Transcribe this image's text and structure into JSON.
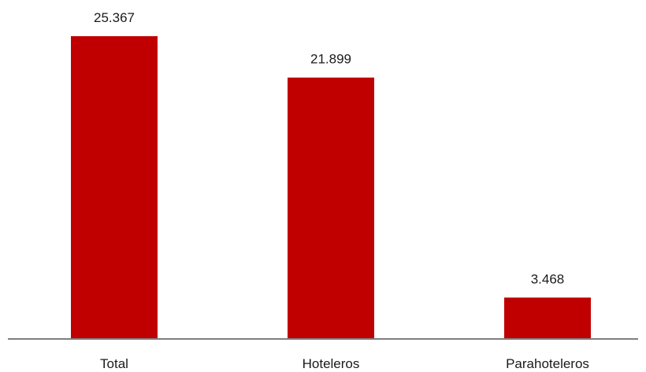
{
  "chart_data": {
    "type": "bar",
    "categories": [
      "Total",
      "Hoteleros",
      "Parahoteleros"
    ],
    "values": [
      25367,
      21899,
      3468
    ],
    "value_labels": [
      "25.367",
      "21.899",
      "3.468"
    ],
    "title": "",
    "xlabel": "",
    "ylabel": "",
    "ylim": [
      0,
      25367
    ],
    "grid": false,
    "legend": "none",
    "colors": {
      "bar": "#c00000",
      "axis": "#7f7f7f",
      "text": "#1a1a1a"
    }
  }
}
